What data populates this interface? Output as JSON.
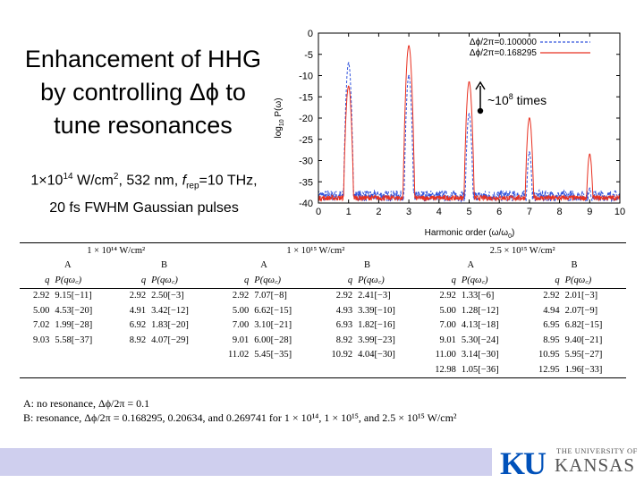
{
  "slide": {
    "title_lines": [
      "Enhancement of HHG",
      "by controlling Δϕ to",
      "tune resonances"
    ],
    "subtitle_line1_parts": [
      "1×10",
      "14",
      " W/cm",
      "2",
      ", 532 nm, ",
      "f",
      "rep",
      "=10 THz,"
    ],
    "subtitle_line2": "20 fs FWHM Gaussian pulses"
  },
  "chart_data": {
    "type": "line",
    "xlabel_parts": [
      "Harmonic order (ω/ω",
      "0",
      ")"
    ],
    "ylabel_parts": [
      "log",
      "10",
      " P(ω)"
    ],
    "xlim": [
      0,
      10
    ],
    "ylim": [
      -40,
      0
    ],
    "xticks": [
      0,
      1,
      2,
      3,
      4,
      5,
      6,
      7,
      8,
      9,
      10
    ],
    "yticks": [
      0,
      -5,
      -10,
      -15,
      -20,
      -25,
      -30,
      -35,
      -40
    ],
    "legend_position": "top-right",
    "annotation_parts": [
      "~10",
      "8",
      " times"
    ],
    "colors": {
      "series_a": "#3355dd",
      "series_b": "#e83020"
    },
    "series": [
      {
        "name": "Δϕ/2π=0.100000",
        "style": "dashed",
        "peaks": [
          [
            1,
            -7
          ],
          [
            3,
            -10
          ],
          [
            5,
            -19
          ],
          [
            7,
            -28
          ],
          [
            9,
            -36.5
          ]
        ]
      },
      {
        "name": "Δϕ/2π=0.168295",
        "style": "solid",
        "peaks": [
          [
            1,
            -12.5
          ],
          [
            3,
            -3
          ],
          [
            5,
            -11.5
          ],
          [
            7,
            -20
          ],
          [
            9,
            -28.5
          ]
        ]
      }
    ]
  },
  "table": {
    "groups": [
      {
        "label": "1 × 10¹⁴ W/cm²",
        "subgroups": [
          "A",
          "B"
        ]
      },
      {
        "label": "1 × 10¹⁵ W/cm²",
        "subgroups": [
          "A",
          "B"
        ]
      },
      {
        "label": "2.5 × 10¹⁵ W/cm²",
        "subgroups": [
          "A",
          "B"
        ]
      }
    ],
    "col_q": "q",
    "col_p": "P(qω꜀)",
    "rows": [
      [
        "2.92",
        "9.15[−11]",
        "2.92",
        "2.50[−3]",
        "2.92",
        "7.07[−8]",
        "2.92",
        "2.41[−3]",
        "2.92",
        "1.33[−6]",
        "2.92",
        "2.01[−3]"
      ],
      [
        "5.00",
        "4.53[−20]",
        "4.91",
        "3.42[−12]",
        "5.00",
        "6.62[−15]",
        "4.93",
        "3.39[−10]",
        "5.00",
        "1.28[−12]",
        "4.94",
        "2.07[−9]"
      ],
      [
        "7.02",
        "1.99[−28]",
        "6.92",
        "1.83[−20]",
        "7.00",
        "3.10[−21]",
        "6.93",
        "1.82[−16]",
        "7.00",
        "4.13[−18]",
        "6.95",
        "6.82[−15]"
      ],
      [
        "9.03",
        "5.58[−37]",
        "8.92",
        "4.07[−29]",
        "9.01",
        "6.00[−28]",
        "8.92",
        "3.99[−23]",
        "9.01",
        "5.30[−24]",
        "8.95",
        "9.40[−21]"
      ],
      [
        "",
        "",
        "",
        "",
        "11.02",
        "5.45[−35]",
        "10.92",
        "4.04[−30]",
        "11.00",
        "3.14[−30]",
        "10.95",
        "5.95[−27]"
      ],
      [
        "",
        "",
        "",
        "",
        "",
        "",
        "",
        "",
        "12.98",
        "1.05[−36]",
        "12.95",
        "1.96[−33]"
      ]
    ]
  },
  "notes": {
    "a": "A: no resonance, Δϕ/2π = 0.1",
    "b": "B: resonance, Δϕ/2π = 0.168295, 0.20634, and 0.269741 for 1 × 10¹⁴, 1 × 10¹⁵, and 2.5 × 10¹⁵ W/cm²"
  },
  "logo": {
    "mark": "KU",
    "line1": "THE UNIVERSITY OF",
    "line2": "KANSAS",
    "color": "#0051ba"
  }
}
